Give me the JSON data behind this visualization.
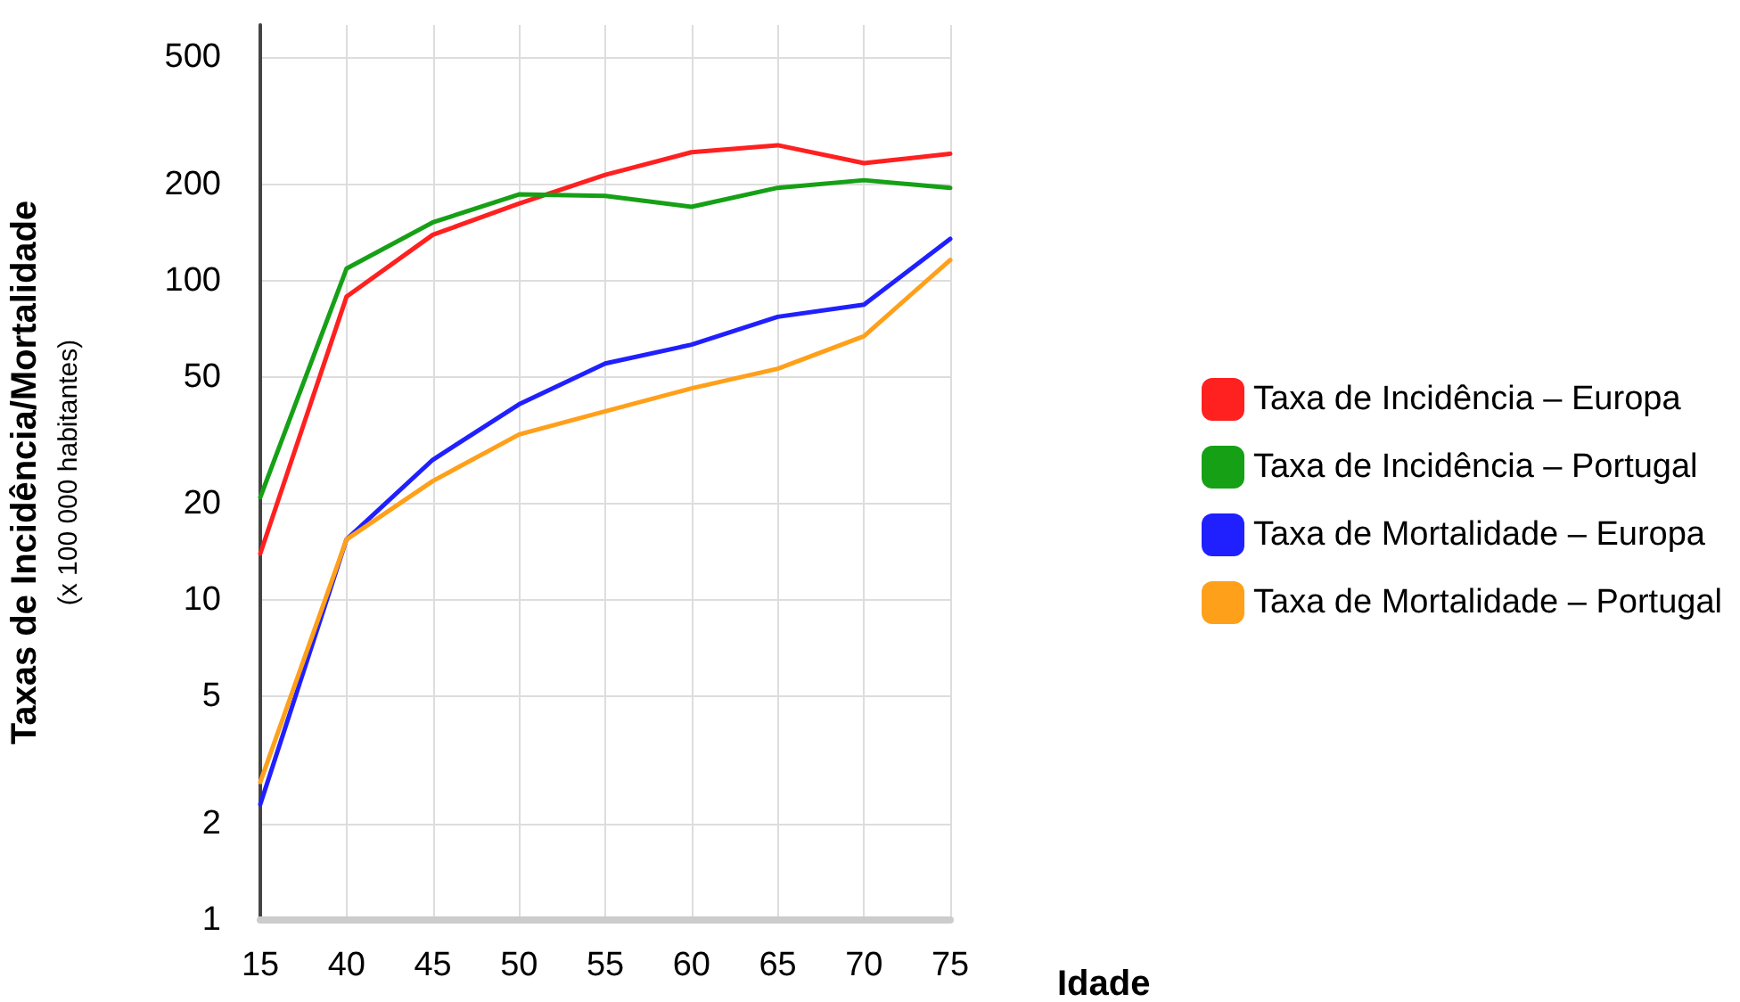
{
  "chart_data": {
    "type": "line",
    "xlabel": "Idade",
    "ylabel": "Taxas de Incidência/Mortalidade\n(x 100 000 habitantes)",
    "categories": [
      "15",
      "40",
      "45",
      "50",
      "55",
      "60",
      "65",
      "70",
      "75"
    ],
    "series": [
      {
        "name": "Taxa de Incidência – Europa",
        "color": "#ff2020",
        "values": [
          14,
          89,
          139,
          174,
          214,
          252,
          265,
          233,
          249
        ]
      },
      {
        "name": "Taxa de Incidência – Portugal",
        "color": "#16a016",
        "values": [
          21,
          109,
          152,
          186,
          184,
          170,
          195,
          206,
          195
        ]
      },
      {
        "name": "Taxa de Mortalidade – Europa",
        "color": "#2020ff",
        "values": [
          2.3,
          15.5,
          27.5,
          41,
          55,
          63,
          77,
          84,
          135
        ]
      },
      {
        "name": "Taxa de Mortalidade – Portugal",
        "color": "#ffa01a",
        "values": [
          2.7,
          15.5,
          23.6,
          33,
          39,
          46,
          53,
          67,
          116
        ]
      }
    ],
    "log": "y",
    "ylim": [
      1,
      630
    ],
    "yticks": [
      1,
      2,
      5,
      10,
      20,
      50,
      100,
      200,
      500
    ],
    "grid": true,
    "legend": "right",
    "marker": "none",
    "line_style": "solid"
  }
}
